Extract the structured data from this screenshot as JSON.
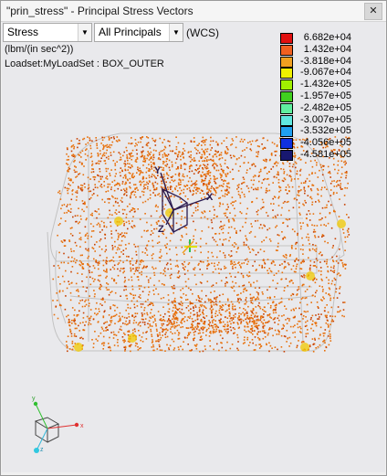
{
  "window": {
    "title": "\"prin_stress\" - Principal Stress Vectors",
    "close_glyph": "✕"
  },
  "toolbar": {
    "quantity": "Stress",
    "component": "All Principals",
    "coord_system": "(WCS)",
    "dropdown_glyph": "▼"
  },
  "units_text": "(lbm/(in sec^2))",
  "loadset_text": "Loadset:MyLoadSet :  BOX_OUTER",
  "legend": {
    "items": [
      {
        "label": "6.682e+04",
        "color": "#e01010"
      },
      {
        "label": "1.432e+04",
        "color": "#f06020"
      },
      {
        "label": "-3.818e+04",
        "color": "#f0a020"
      },
      {
        "label": "-9.067e+04",
        "color": "#f0f000"
      },
      {
        "label": "-1.432e+05",
        "color": "#a0f000"
      },
      {
        "label": "-1.957e+05",
        "color": "#40d020"
      },
      {
        "label": "-2.482e+05",
        "color": "#60f0a0"
      },
      {
        "label": "-3.007e+05",
        "color": "#60e8e0"
      },
      {
        "label": "-3.532e+05",
        "color": "#20a0f0"
      },
      {
        "label": "-4.056e+05",
        "color": "#1030e0"
      },
      {
        "label": "-4.581e+05",
        "color": "#181870"
      }
    ]
  },
  "model_triad": {
    "x": "X",
    "y": "Y",
    "z": "Z"
  },
  "view_triad": {
    "x": "x",
    "y": "y",
    "z": "z"
  },
  "colors": {
    "vector": "#e8700a",
    "vector_dark": "#c84000",
    "hotspot": "#f0c800",
    "edge": "#bdbdbd"
  }
}
